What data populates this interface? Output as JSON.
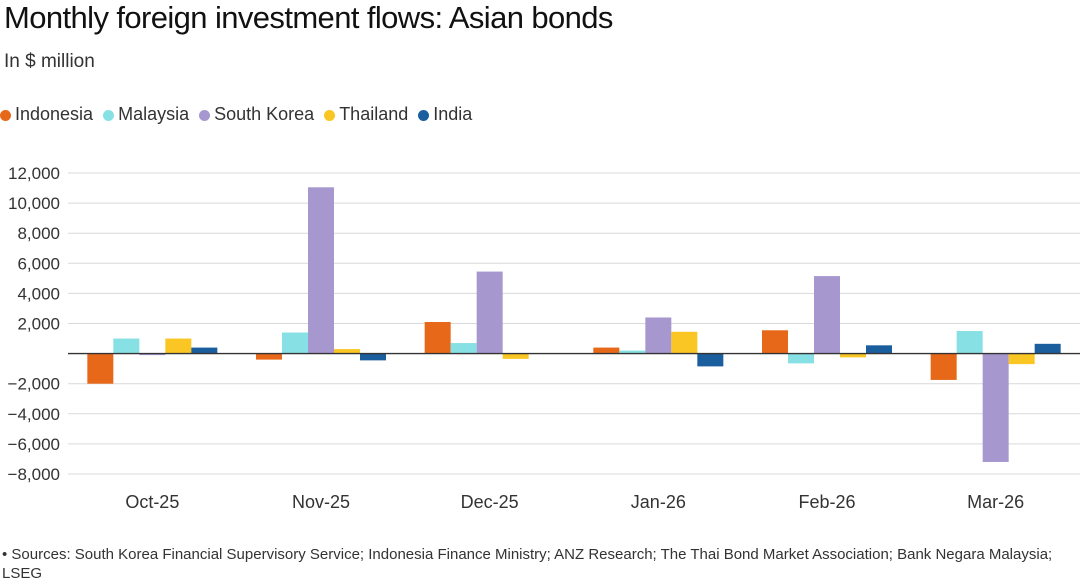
{
  "chart_data": {
    "type": "bar",
    "title": "Monthly foreign investment flows: Asian bonds",
    "subtitle": "In $ million",
    "categories": [
      "Oct-25",
      "Nov-25",
      "Dec-25",
      "Jan-26",
      "Feb-26",
      "Mar-26"
    ],
    "series": [
      {
        "name": "Indonesia",
        "color": "#e8681a",
        "values": [
          -2000,
          -400,
          2100,
          400,
          1550,
          -1750
        ]
      },
      {
        "name": "Malaysia",
        "color": "#87e0e4",
        "values": [
          1000,
          1400,
          700,
          200,
          -650,
          1500
        ]
      },
      {
        "name": "South Korea",
        "color": "#a797cf",
        "values": [
          -100,
          11050,
          5450,
          2400,
          5150,
          -7200
        ]
      },
      {
        "name": "Thailand",
        "color": "#f9c623",
        "values": [
          1000,
          300,
          -350,
          1450,
          -250,
          -700
        ]
      },
      {
        "name": "India",
        "color": "#1b5e9d",
        "values": [
          400,
          -450,
          0,
          -850,
          550,
          650
        ]
      }
    ],
    "yticks": [
      12000,
      10000,
      8000,
      6000,
      4000,
      2000,
      0,
      -2000,
      -4000,
      -6000,
      -8000
    ],
    "ytick_labels": [
      "12,000",
      "10,000",
      "8,000",
      "6,000",
      "4,000",
      "2,000",
      "",
      "−2,000",
      "−4,000",
      "−6,000",
      "−8,000"
    ],
    "ylim": [
      -8000,
      12000
    ],
    "xlabel": "",
    "ylabel": "",
    "grid": true,
    "legend_position": "top-left"
  },
  "footnote": "• Sources: South Korea Financial Supervisory Service; Indonesia Finance Ministry; ANZ Research; The Thai Bond Market Association; Bank Negara Malaysia; LSEG"
}
